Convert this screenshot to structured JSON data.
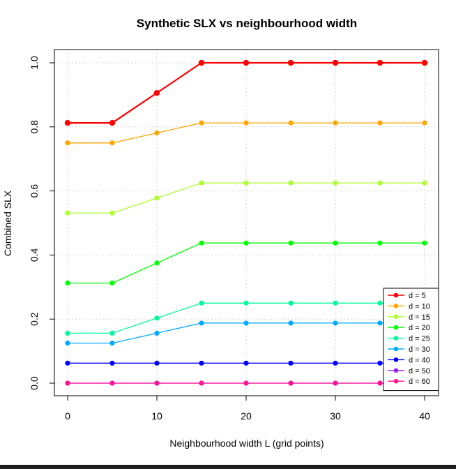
{
  "chart_data": {
    "type": "line",
    "title": "Synthetic SLX vs neighbourhood width",
    "xlabel": "Neighbourhood width L (grid points)",
    "ylabel": "Combined SLX",
    "xlim": [
      0,
      40
    ],
    "ylim": [
      0,
      1
    ],
    "x_ticks": [
      "0",
      "10",
      "20",
      "30",
      "40"
    ],
    "y_ticks": [
      "0.0",
      "0.2",
      "0.4",
      "0.6",
      "0.8",
      "1.0"
    ],
    "grid": true,
    "legend_position": "bottom-right",
    "x": [
      0,
      5,
      10,
      15,
      20,
      25,
      30,
      35,
      40
    ],
    "series": [
      {
        "name": "d = 5",
        "color": "#ff0000",
        "values": [
          0.8125,
          0.8125,
          0.906,
          1.0,
          1.0,
          1.0,
          1.0,
          1.0,
          1.0
        ]
      },
      {
        "name": "d = 10",
        "color": "#ffa500",
        "values": [
          0.75,
          0.75,
          0.781,
          0.8125,
          0.8125,
          0.8125,
          0.8125,
          0.8125,
          0.8125
        ]
      },
      {
        "name": "d = 15",
        "color": "#adff2f",
        "values": [
          0.531,
          0.531,
          0.578,
          0.625,
          0.625,
          0.625,
          0.625,
          0.625,
          0.625
        ]
      },
      {
        "name": "d = 20",
        "color": "#00ff00",
        "values": [
          0.3125,
          0.3125,
          0.375,
          0.4375,
          0.4375,
          0.4375,
          0.4375,
          0.4375,
          0.4375
        ]
      },
      {
        "name": "d = 25",
        "color": "#00fa9a",
        "values": [
          0.156,
          0.156,
          0.203,
          0.25,
          0.25,
          0.25,
          0.25,
          0.25,
          0.25
        ]
      },
      {
        "name": "d = 30",
        "color": "#00aaff",
        "values": [
          0.125,
          0.125,
          0.156,
          0.1875,
          0.1875,
          0.1875,
          0.1875,
          0.1875,
          0.1875
        ]
      },
      {
        "name": "d = 40",
        "color": "#0000ff",
        "values": [
          0.0625,
          0.0625,
          0.0625,
          0.0625,
          0.0625,
          0.0625,
          0.0625,
          0.0625,
          0.0625
        ]
      },
      {
        "name": "d = 50",
        "color": "#a020f0",
        "values": [
          0.0,
          0.0,
          0.0,
          0.0,
          0.0,
          0.0,
          0.0,
          0.0,
          0.0
        ]
      },
      {
        "name": "d = 60",
        "color": "#ff1493",
        "values": [
          0.0,
          0.0,
          0.0,
          0.0,
          0.0,
          0.0,
          0.0,
          0.0,
          0.0
        ]
      }
    ]
  }
}
